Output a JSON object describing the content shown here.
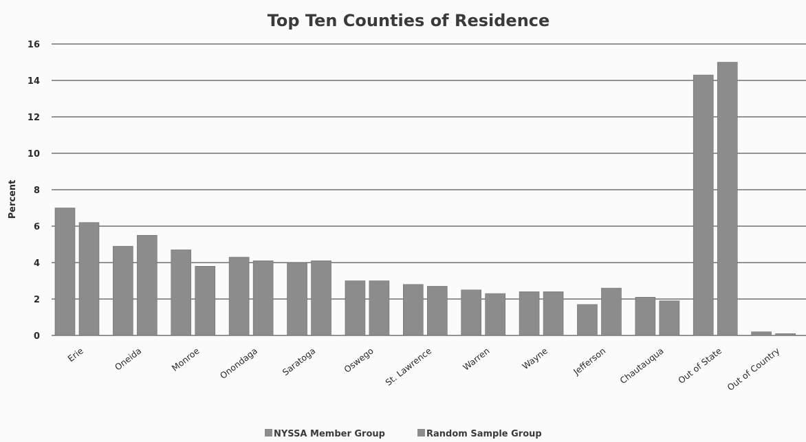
{
  "chart_data": {
    "type": "bar",
    "title": "Top Ten Counties of Residence",
    "ylabel": "Percent",
    "xlabel": "",
    "ylim": [
      0,
      16
    ],
    "yticks": [
      0,
      2,
      4,
      6,
      8,
      10,
      12,
      14,
      16
    ],
    "grid": true,
    "legend_position": "bottom",
    "categories": [
      "Erie",
      "Oneida",
      "Monroe",
      "Onondaga",
      "Saratoga",
      "Oswego",
      "St. Lawrence",
      "Warren",
      "Wayne",
      "Jefferson",
      "Chautauqua",
      "Out of State",
      "Out of Country"
    ],
    "series": [
      {
        "name": "NYSSA Member Group",
        "color": "#8c8c8c",
        "values": [
          7.0,
          4.9,
          4.7,
          4.3,
          4.0,
          3.0,
          2.8,
          2.5,
          2.4,
          1.7,
          2.1,
          14.3,
          0.2
        ]
      },
      {
        "name": "Random Sample Group",
        "color": "#8c8c8c",
        "values": [
          6.2,
          5.5,
          3.8,
          4.1,
          4.1,
          3.0,
          2.7,
          2.3,
          2.4,
          2.6,
          1.9,
          15.0,
          0.1
        ]
      }
    ]
  }
}
